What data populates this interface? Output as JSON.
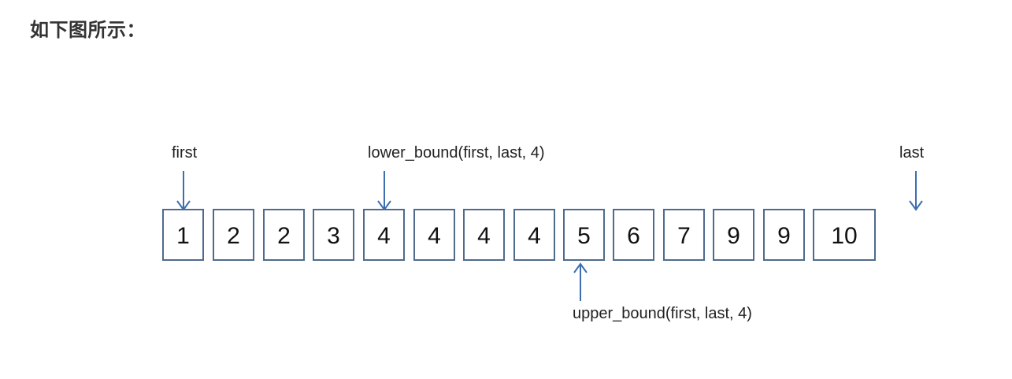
{
  "heading": "如下图所示：",
  "diagram": {
    "array": [
      "1",
      "2",
      "2",
      "3",
      "4",
      "4",
      "4",
      "4",
      "5",
      "6",
      "7",
      "9",
      "9",
      "10"
    ],
    "labels": {
      "first": "first",
      "lower_bound": "lower_bound(first, last, 4)",
      "last": "last",
      "upper_bound": "upper_bound(first, last, 4)"
    },
    "arrow_color": "#3d6eb0",
    "box_color": "#4f6b8c"
  }
}
